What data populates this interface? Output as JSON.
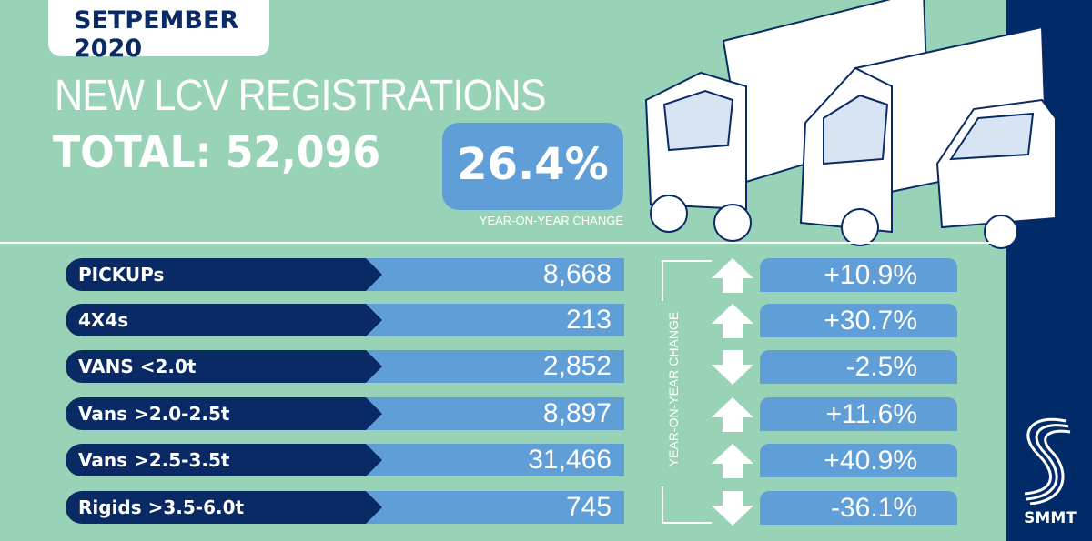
{
  "header": {
    "date": "SETPEMBER 2020",
    "title": "NEW LCV REGISTRATIONS",
    "total": "TOTAL: 52,096",
    "total_change": "26.4%",
    "change_label": "YEAR-ON-YEAR CHANGE"
  },
  "rows": [
    {
      "label": "PICKUPs",
      "value": "8,668",
      "change": "+10.9%",
      "direction": "up"
    },
    {
      "label": "4X4s",
      "value": "213",
      "change": "+30.7%",
      "direction": "up"
    },
    {
      "label": "VANS <2.0t",
      "value": "2,852",
      "change": "-2.5%",
      "direction": "down"
    },
    {
      "label": "Vans >2.0-2.5t",
      "value": "8,897",
      "change": "+11.6%",
      "direction": "up"
    },
    {
      "label": "Vans >2.5-3.5t",
      "value": "31,466",
      "change": "+40.9%",
      "direction": "up"
    },
    {
      "label": "Rigids >3.5-6.0t",
      "value": "745",
      "change": "-36.1%",
      "direction": "down"
    }
  ],
  "vertical_label": "YEAR-ON-YEAR CHANGE",
  "logo": {
    "text": "SMMT"
  },
  "colors": {
    "background": "#98d3b8",
    "navy": "#0a2a66",
    "blue": "#5f9ed6"
  }
}
